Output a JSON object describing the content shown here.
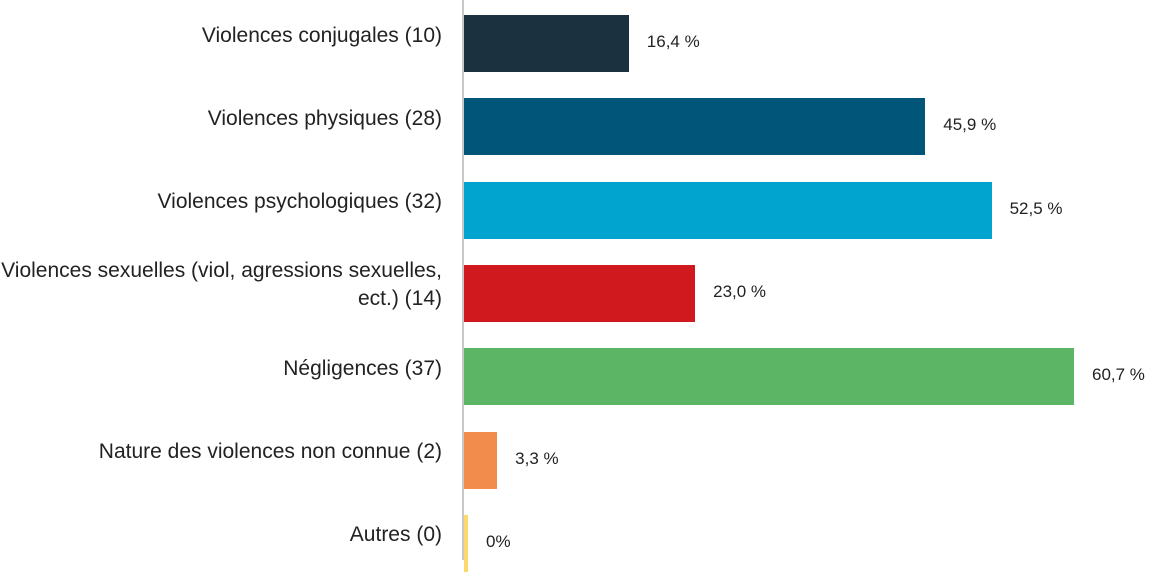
{
  "chart_data": {
    "type": "bar",
    "orientation": "horizontal",
    "categories": [
      "Violences conjugales (10)",
      "Violences physiques (28)",
      "Violences psychologiques (32)",
      "Violences sexuelles (viol, agressions sexuelles, ect.) (14)",
      "Négligences (37)",
      "Nature des violences non connue (2)",
      "Autres (0)"
    ],
    "values": [
      16.4,
      45.9,
      52.5,
      23.0,
      60.7,
      3.3,
      0
    ],
    "value_labels": [
      "16,4 %",
      "45,9 %",
      "52,5 %",
      "23,0 %",
      "60,7 %",
      "3,3 %",
      "0%"
    ],
    "colors": [
      "#1c3140",
      "#005578",
      "#00a4cf",
      "#d0191e",
      "#5bb565",
      "#f28c4d",
      "#fdd96b"
    ]
  }
}
